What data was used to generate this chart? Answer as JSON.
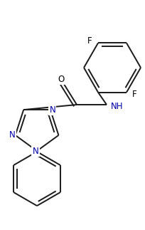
{
  "bg_color": "#ffffff",
  "bond_color": "#1a1a1a",
  "n_color": "#0000aa",
  "line_width": 1.4,
  "figsize": [
    2.05,
    3.23
  ],
  "dpi": 100,
  "xlim": [
    0,
    205
  ],
  "ylim": [
    0,
    323
  ]
}
